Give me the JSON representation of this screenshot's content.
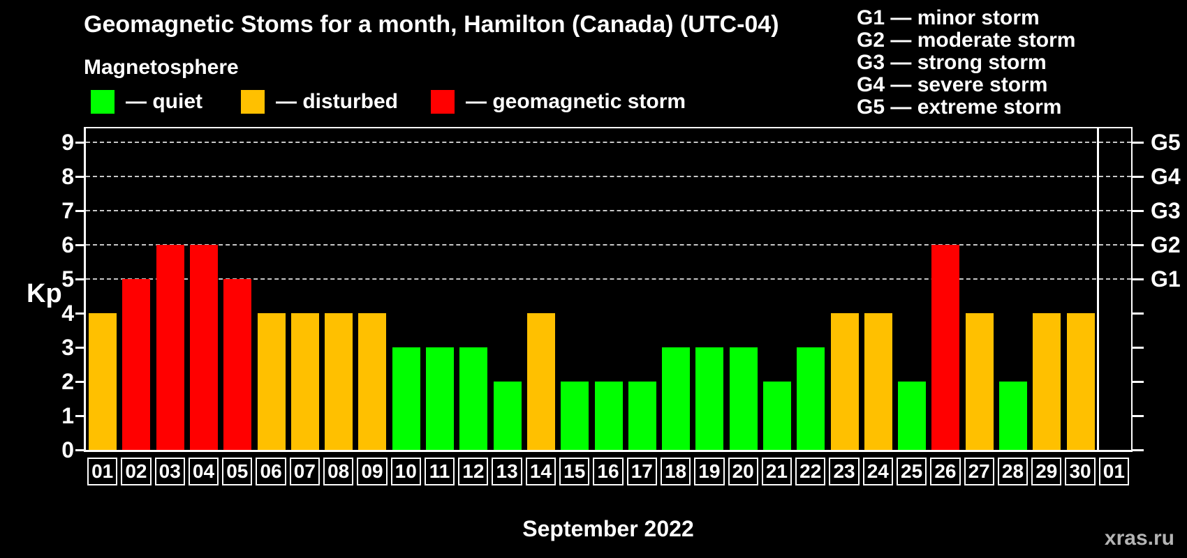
{
  "header": {
    "title": "Geomagnetic Stoms for a month, Hamilton (Canada) (UTC-04)"
  },
  "storm_scale_legend": {
    "items": [
      {
        "label": "G1 — minor storm"
      },
      {
        "label": "G2 — moderate storm"
      },
      {
        "label": "G3 — strong storm"
      },
      {
        "label": "G4 — severe storm"
      },
      {
        "label": "G5 — extreme storm"
      }
    ]
  },
  "legend": {
    "heading": "Magnetosphere",
    "items": [
      {
        "name": "quiet",
        "label": "— quiet",
        "color": "#00ff00"
      },
      {
        "name": "disturbed",
        "label": "— disturbed",
        "color": "#ffc000"
      },
      {
        "name": "geomagnetic-storm",
        "label": "— geomagnetic storm",
        "color": "#ff0000"
      }
    ]
  },
  "axes": {
    "y_label": "Kp",
    "x_label": "September 2022",
    "y_ticks": [
      0,
      1,
      2,
      3,
      4,
      5,
      6,
      7,
      8,
      9
    ],
    "right_labels": [
      {
        "label": "G1",
        "kp": 5
      },
      {
        "label": "G2",
        "kp": 6
      },
      {
        "label": "G3",
        "kp": 7
      },
      {
        "label": "G4",
        "kp": 8
      },
      {
        "label": "G5",
        "kp": 9
      }
    ]
  },
  "chart_data": {
    "type": "bar",
    "title": "Geomagnetic Stoms for a month, Hamilton (Canada) (UTC-04)",
    "xlabel": "September 2022",
    "ylabel": "Kp",
    "ylim": [
      0,
      9.4
    ],
    "grid": "dashed horizontal at Kp 5-9",
    "gridlines_kp": [
      5,
      6,
      7,
      8,
      9
    ],
    "categories": [
      "01",
      "02",
      "03",
      "04",
      "05",
      "06",
      "07",
      "08",
      "09",
      "10",
      "11",
      "12",
      "13",
      "14",
      "15",
      "16",
      "17",
      "18",
      "19",
      "20",
      "21",
      "22",
      "23",
      "24",
      "25",
      "26",
      "27",
      "28",
      "29",
      "30",
      "01"
    ],
    "values": [
      4,
      5,
      6,
      6,
      5,
      4,
      4,
      4,
      4,
      3,
      3,
      3,
      2,
      4,
      2,
      2,
      2,
      3,
      3,
      3,
      2,
      3,
      4,
      4,
      2,
      6,
      4,
      2,
      4,
      4,
      null
    ],
    "statuses": [
      "disturbed",
      "storm",
      "storm",
      "storm",
      "storm",
      "disturbed",
      "disturbed",
      "disturbed",
      "disturbed",
      "quiet",
      "quiet",
      "quiet",
      "quiet",
      "disturbed",
      "quiet",
      "quiet",
      "quiet",
      "quiet",
      "quiet",
      "quiet",
      "quiet",
      "quiet",
      "disturbed",
      "disturbed",
      "quiet",
      "storm",
      "disturbed",
      "quiet",
      "disturbed",
      "disturbed",
      null
    ],
    "status_colors": {
      "quiet": "#00ff00",
      "disturbed": "#ffc000",
      "storm": "#ff0000"
    },
    "notes": "Last column 01 is next month, no data; vertical separator line before it"
  },
  "footer": {
    "watermark": "xras.ru"
  }
}
